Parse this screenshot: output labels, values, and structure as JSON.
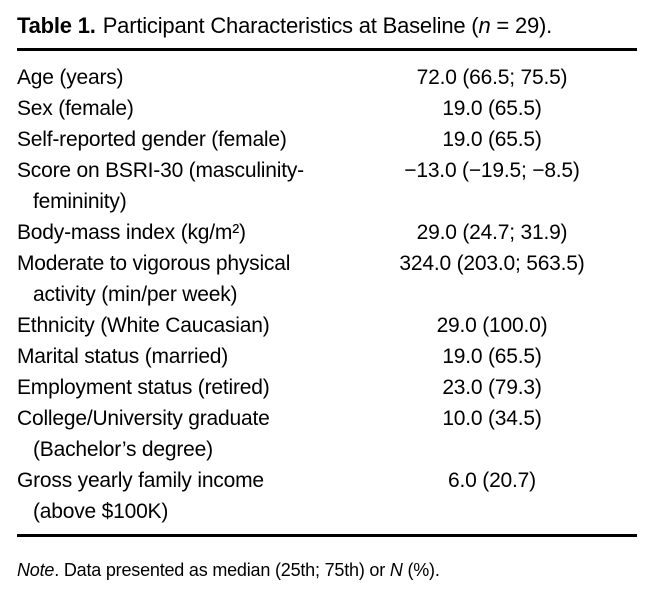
{
  "title": {
    "label": "Table 1.",
    "before_n": "Participant Characteristics at Baseline (",
    "n_symbol": "n",
    "after_n": " = 29)."
  },
  "rows": [
    {
      "label": "Age (years)",
      "value": "72.0 (66.5; 75.5)"
    },
    {
      "label": "Sex (female)",
      "value": "19.0 (65.5)"
    },
    {
      "label": "Self-reported gender (female)",
      "value": "19.0 (65.5)"
    },
    {
      "label": "Score on BSRI-30 (masculinity-",
      "label2": "femininity)",
      "value": "−13.0 (−19.5; −8.5)"
    },
    {
      "label": "Body-mass index (kg/m²)",
      "value": "29.0 (24.7; 31.9)"
    },
    {
      "label": "Moderate to vigorous physical",
      "label2": "activity (min/per week)",
      "value": "324.0 (203.0; 563.5)"
    },
    {
      "label": "Ethnicity (White Caucasian)",
      "value": "29.0 (100.0)"
    },
    {
      "label": "Marital status (married)",
      "value": "19.0 (65.5)"
    },
    {
      "label": "Employment status (retired)",
      "value": "23.0 (79.3)"
    },
    {
      "label": "College/University graduate",
      "label2": "(Bachelor’s degree)",
      "value": "10.0 (34.5)"
    },
    {
      "label": "Gross yearly family income",
      "label2": "(above $100K)",
      "value": "6.0 (20.7)"
    }
  ],
  "note": {
    "lead": "Note",
    "body": ". Data presented as median (25th; 75th) or ",
    "n_symbol": "N",
    "tail": " (%)."
  }
}
